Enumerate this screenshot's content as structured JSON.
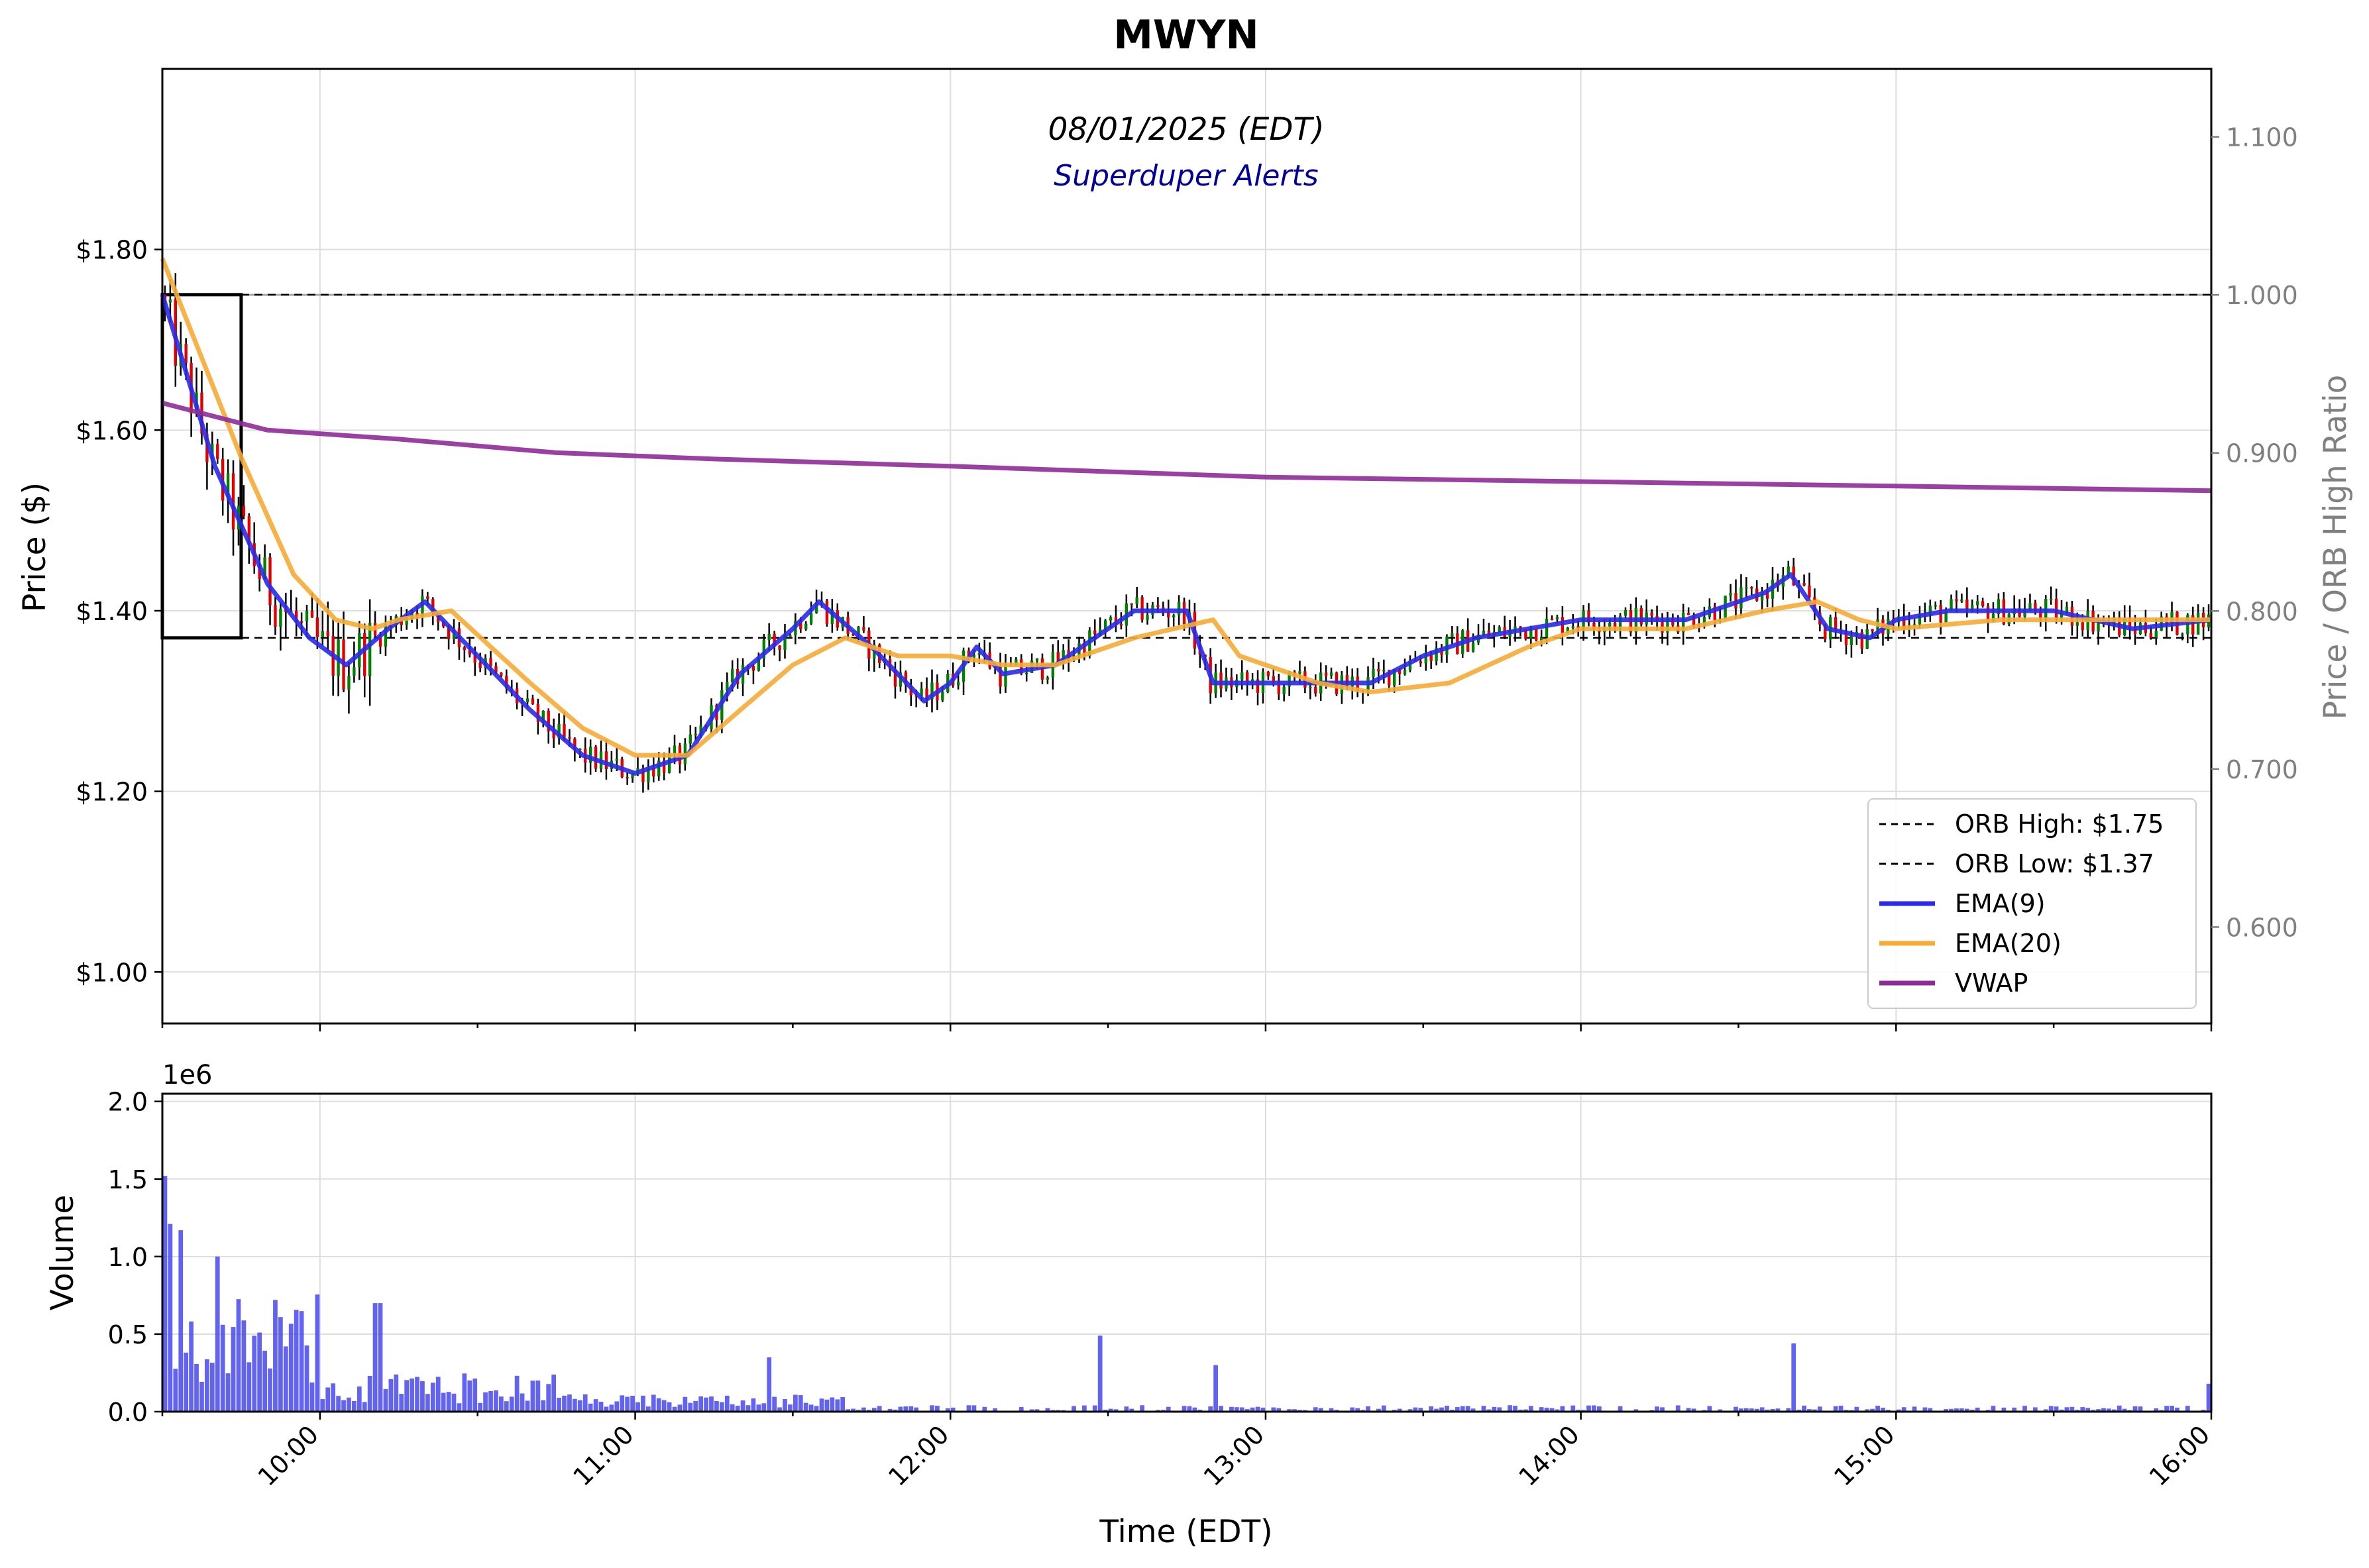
{
  "title": "MWYN",
  "date_label": "08/01/2025 (EDT)",
  "watermark": "Superduper Alerts",
  "colors": {
    "up": "#008000",
    "down": "#e00000",
    "wick": "#000000",
    "ema9": "#2a2ae8",
    "ema20": "#f5ab35",
    "vwap": "#8e2b98",
    "volume": "#4848f0",
    "ratio_axis": "#808080",
    "subtitle": "#000099"
  },
  "chart_data": [
    {
      "type": "candlestick-line",
      "panel": "price",
      "ylabel": "Price ($)",
      "y2label": "Price / ORB High Ratio",
      "ylim": [
        0.943,
        2.0
      ],
      "y_ticks": [
        "$1.00",
        "$1.20",
        "$1.40",
        "$1.60",
        "$1.80"
      ],
      "y2_ticks": [
        "0.600",
        "0.700",
        "0.800",
        "0.900",
        "1.000",
        "1.100"
      ],
      "y2lim": [
        0.539,
        1.143
      ],
      "session": [
        "09:30",
        "16:00"
      ],
      "orb_box": {
        "start": "09:30",
        "end": "09:45",
        "high": 1.75,
        "low": 1.37
      },
      "reference_ratio_line": 1.0,
      "legend": {
        "placement": "lower-right",
        "entries": [
          "ORB High: $1.75",
          "ORB Low: $1.37",
          "EMA(9)",
          "EMA(20)",
          "VWAP"
        ]
      },
      "series": [
        {
          "name": "EMA(9)",
          "times": [
            "09:30",
            "09:40",
            "09:50",
            "09:58",
            "10:05",
            "10:13",
            "10:20",
            "10:30",
            "10:40",
            "10:50",
            "11:00",
            "11:10",
            "11:20",
            "11:30",
            "11:35",
            "11:45",
            "11:55",
            "12:00",
            "12:05",
            "12:10",
            "12:20",
            "12:30",
            "12:35",
            "12:45",
            "12:50",
            "13:00",
            "13:10",
            "13:20",
            "13:30",
            "13:40",
            "13:50",
            "14:00",
            "14:20",
            "14:35",
            "14:40",
            "14:47",
            "14:55",
            "15:00",
            "15:10",
            "15:30",
            "15:45",
            "16:00"
          ],
          "values": [
            1.75,
            1.56,
            1.43,
            1.37,
            1.34,
            1.38,
            1.41,
            1.35,
            1.29,
            1.24,
            1.22,
            1.24,
            1.33,
            1.38,
            1.41,
            1.36,
            1.3,
            1.32,
            1.36,
            1.33,
            1.34,
            1.38,
            1.4,
            1.4,
            1.32,
            1.32,
            1.32,
            1.32,
            1.35,
            1.37,
            1.38,
            1.39,
            1.39,
            1.42,
            1.44,
            1.38,
            1.37,
            1.39,
            1.4,
            1.4,
            1.38,
            1.39
          ]
        },
        {
          "name": "EMA(20)",
          "times": [
            "09:30",
            "09:45",
            "09:55",
            "10:03",
            "10:10",
            "10:15",
            "10:25",
            "10:40",
            "10:50",
            "11:00",
            "11:10",
            "11:20",
            "11:30",
            "11:40",
            "11:50",
            "12:00",
            "12:10",
            "12:20",
            "12:35",
            "12:50",
            "12:55",
            "13:05",
            "13:10",
            "13:20",
            "13:35",
            "13:50",
            "14:00",
            "14:20",
            "14:35",
            "14:45",
            "14:53",
            "15:00",
            "15:20",
            "15:40",
            "16:00"
          ],
          "values": [
            1.79,
            1.57,
            1.44,
            1.39,
            1.38,
            1.39,
            1.4,
            1.32,
            1.27,
            1.24,
            1.24,
            1.29,
            1.34,
            1.37,
            1.35,
            1.35,
            1.34,
            1.34,
            1.37,
            1.39,
            1.35,
            1.33,
            1.32,
            1.31,
            1.32,
            1.36,
            1.38,
            1.38,
            1.4,
            1.41,
            1.39,
            1.38,
            1.39,
            1.39,
            1.39
          ]
        },
        {
          "name": "VWAP",
          "times": [
            "09:30",
            "09:50",
            "10:15",
            "10:45",
            "11:15",
            "12:00",
            "12:30",
            "13:00",
            "14:00",
            "15:00",
            "16:00"
          ],
          "values": [
            1.63,
            1.6,
            1.59,
            1.575,
            1.568,
            1.56,
            1.554,
            1.548,
            1.543,
            1.538,
            1.533
          ]
        }
      ],
      "candles": "Minute-by-minute OHLC bars drawn green (up) and red (down) following the price path shown"
    },
    {
      "type": "bar",
      "panel": "volume",
      "ylabel": "Volume",
      "xlabel": "Time (EDT)",
      "exponent_label": "1e6",
      "ylim": [
        0,
        2.05
      ],
      "y_ticks": [
        "0.0",
        "0.5",
        "1.0",
        "1.5",
        "2.0"
      ],
      "x_ticks": [
        "10:00",
        "11:00",
        "12:00",
        "13:00",
        "14:00",
        "15:00",
        "16:00"
      ],
      "peaks": [
        {
          "time": "09:30",
          "value": 1.52
        },
        {
          "time": "09:31",
          "value": 1.21
        },
        {
          "time": "09:33",
          "value": 1.17
        },
        {
          "time": "09:40",
          "value": 1.0
        },
        {
          "time": "09:48",
          "value": 0.51
        },
        {
          "time": "10:10",
          "value": 0.7
        },
        {
          "time": "10:11",
          "value": 0.7
        },
        {
          "time": "11:25",
          "value": 0.35
        },
        {
          "time": "12:28",
          "value": 0.49
        },
        {
          "time": "12:50",
          "value": 0.3
        },
        {
          "time": "14:40",
          "value": 0.44
        },
        {
          "time": "15:59",
          "value": 0.18
        }
      ]
    }
  ]
}
